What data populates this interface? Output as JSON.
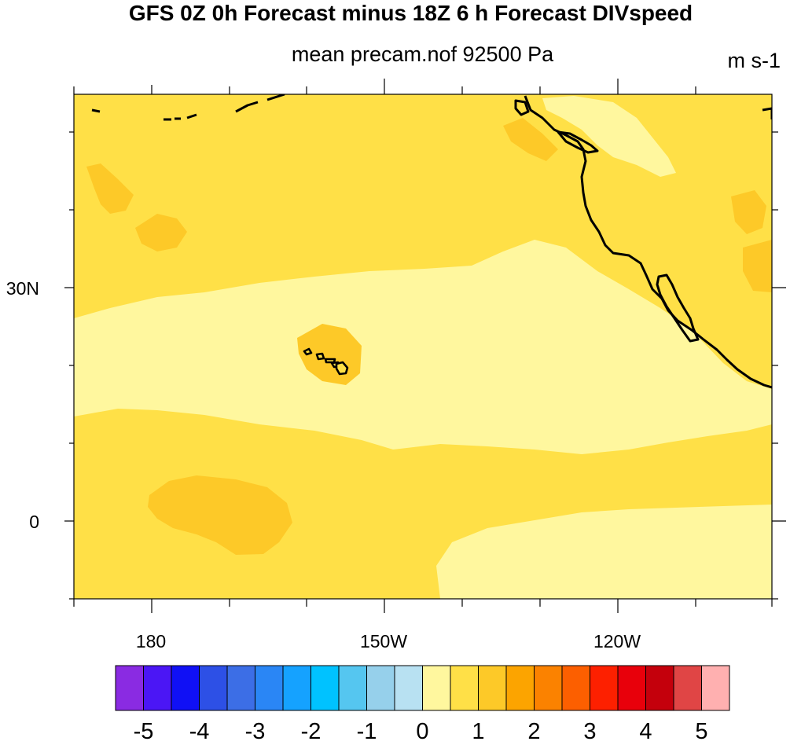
{
  "title": "GFS 0Z 0h Forecast minus 18Z 6 h Forecast DIVspeed",
  "subtitle": "mean precam.nof 92500 Pa",
  "units": "m s-1",
  "map": {
    "lat_range": [
      -10,
      55
    ],
    "lon_range": [
      170,
      260
    ],
    "lat_tick_labels": [
      {
        "lat": 30,
        "label": "30N"
      },
      {
        "lat": 0,
        "label": "0"
      }
    ],
    "lon_tick_labels": [
      {
        "lon": 180,
        "label": "180"
      },
      {
        "lon": 210,
        "label": "150W"
      },
      {
        "lon": 240,
        "label": "120W"
      }
    ],
    "field_background_color": "#ffe047",
    "colors": {
      "0_to_0.5": "#fff79e",
      "0.5_to_1": "#ffe047",
      "1_to_1.5": "#fdc928"
    }
  },
  "colorbar": {
    "colors": [
      "#8a2be2",
      "#4b16f5",
      "#1010f5",
      "#2d50e6",
      "#3c6ee6",
      "#2a86f5",
      "#15a2ff",
      "#00c2ff",
      "#55c6f0",
      "#96d0eb",
      "#b8e1f2",
      "#fff79e",
      "#ffe047",
      "#fdc928",
      "#fca400",
      "#fb8200",
      "#fc5f00",
      "#fd2000",
      "#e8000b",
      "#c4000c",
      "#e04545",
      "#ffb0b0"
    ],
    "labels": [
      "-5",
      "-4",
      "-3",
      "-2",
      "-1",
      "0",
      "1",
      "2",
      "3",
      "4",
      "5"
    ]
  }
}
